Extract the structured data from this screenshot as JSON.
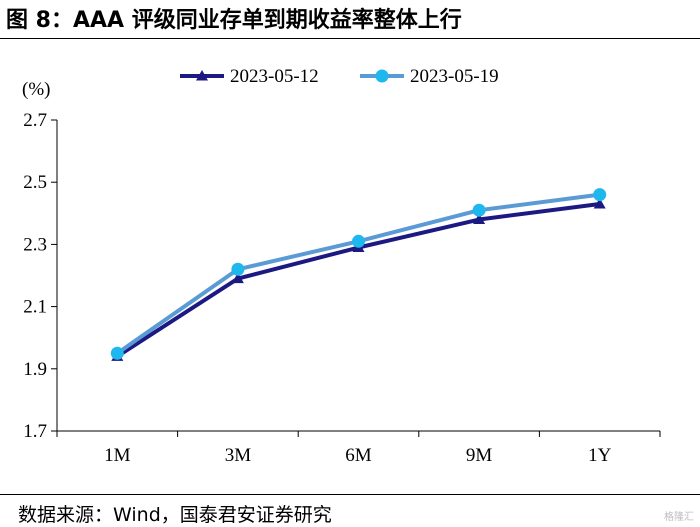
{
  "figure": {
    "title": "图 8：AAA 评级同业存单到期收益率整体上行",
    "source": "数据来源：Wind，国泰君安证券研究",
    "watermark": "格隆汇"
  },
  "chart_data": {
    "type": "line",
    "title": "",
    "xlabel": "",
    "ylabel": "(%)",
    "categories": [
      "1M",
      "3M",
      "6M",
      "9M",
      "1Y"
    ],
    "ylim": [
      1.7,
      2.7
    ],
    "yticks": [
      "1.7",
      "1.9",
      "2.1",
      "2.3",
      "2.5",
      "2.7"
    ],
    "grid": false,
    "legend_position": "top-center",
    "series": [
      {
        "name": "2023-05-12",
        "values": [
          1.94,
          2.19,
          2.29,
          2.38,
          2.43
        ],
        "color": "#1c1a82",
        "marker": "triangle"
      },
      {
        "name": "2023-05-19",
        "values": [
          1.95,
          2.22,
          2.31,
          2.41,
          2.46
        ],
        "color": "#5a9bd5",
        "marker": "circle",
        "marker_color": "#1fb8ee"
      }
    ]
  }
}
